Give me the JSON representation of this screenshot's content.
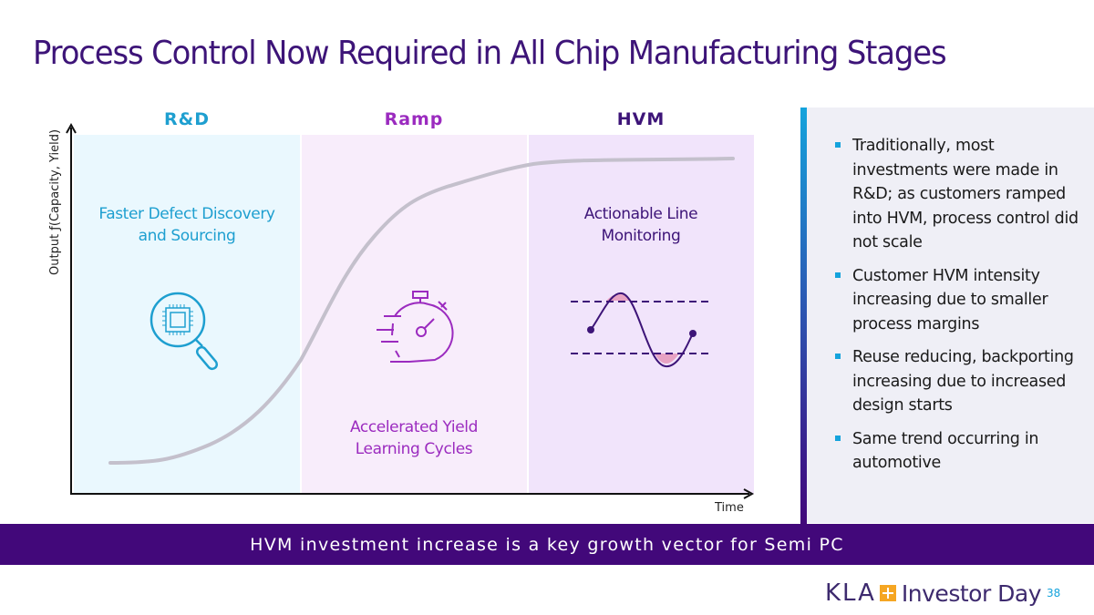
{
  "title": "Process Control Now Required in All Chip Manufacturing Stages",
  "stages": [
    {
      "label": "R&D",
      "color": "#1e9fd0",
      "text": [
        "Faster Defect Discovery",
        "and Sourcing"
      ],
      "icon": "magnifier-chip-icon"
    },
    {
      "label": "Ramp",
      "color": "#9b2bbf",
      "text": [
        "Accelerated Yield",
        "Learning Cycles"
      ],
      "icon": "stopwatch-icon"
    },
    {
      "label": "HVM",
      "color": "#3d1478",
      "text": [
        "Actionable Line",
        "Monitoring"
      ],
      "icon": "control-chart-icon"
    }
  ],
  "axes": {
    "y_label": "Output ƒ(Capacity, Yield)",
    "x_label": "Time"
  },
  "bullets": [
    "Traditionally, most investments were made in R&D; as customers ramped into HVM, process control did not scale",
    "Customer HVM intensity increasing due to smaller process margins",
    "Reuse reducing, backporting increasing due to increased design starts",
    "Same trend occurring in automotive"
  ],
  "banner": "HVM investment increase is a key growth vector for Semi PC",
  "footer": {
    "brand": "KLA",
    "event": "Investor Day",
    "page": "38"
  },
  "colors": {
    "title": "#3d1478",
    "banner": "#42087a",
    "accent": "#14a3dc",
    "logo_plus": "#f5a623"
  }
}
